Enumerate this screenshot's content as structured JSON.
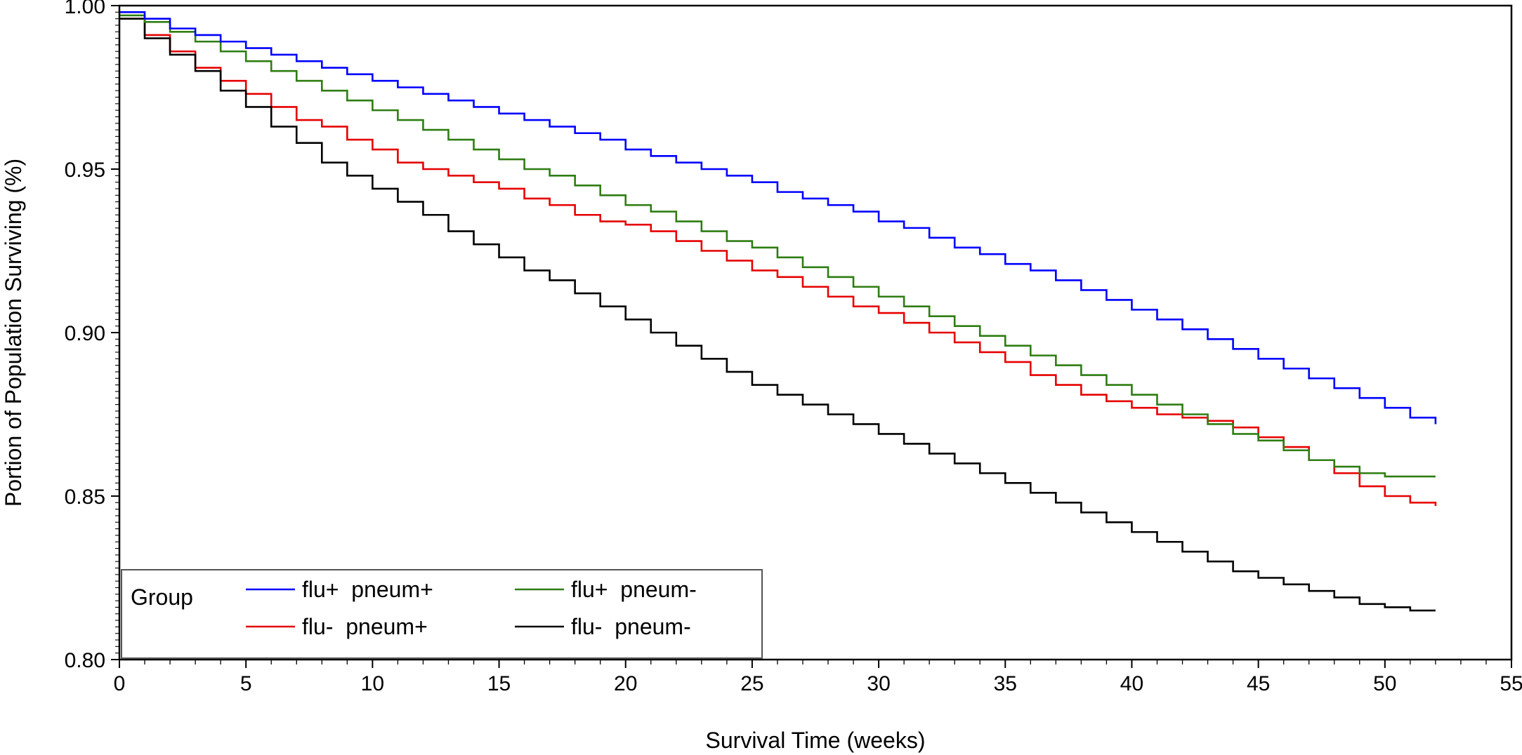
{
  "chart_data": {
    "type": "line",
    "step": true,
    "title": "",
    "xlabel": "Survival Time  (weeks)",
    "ylabel": "Portion of Population Surviving  (%)",
    "xlim": [
      0,
      55
    ],
    "ylim": [
      0.8,
      1.0
    ],
    "x_ticks": [
      "0",
      "5",
      "10",
      "15",
      "20",
      "25",
      "30",
      "35",
      "40",
      "45",
      "50",
      "55"
    ],
    "y_ticks": [
      "0.80",
      "0.85",
      "0.90",
      "0.95",
      "1.00"
    ],
    "x_tick_values": [
      0,
      5,
      10,
      15,
      20,
      25,
      30,
      35,
      40,
      45,
      50,
      55
    ],
    "y_tick_values": [
      0.8,
      0.85,
      0.9,
      0.95,
      1.0
    ],
    "grid": false,
    "legend": {
      "title": "Group",
      "placement": "bottom-left"
    },
    "x": [
      0,
      1,
      2,
      3,
      4,
      5,
      6,
      7,
      8,
      9,
      10,
      11,
      12,
      13,
      14,
      15,
      16,
      17,
      18,
      19,
      20,
      21,
      22,
      23,
      24,
      25,
      26,
      27,
      28,
      29,
      30,
      31,
      32,
      33,
      34,
      35,
      36,
      37,
      38,
      39,
      40,
      41,
      42,
      43,
      44,
      45,
      46,
      47,
      48,
      49,
      50,
      51,
      52
    ],
    "series": [
      {
        "name": "flu+  pneum+",
        "color": "#0000ff",
        "values": [
          0.998,
          0.996,
          0.993,
          0.991,
          0.989,
          0.987,
          0.985,
          0.983,
          0.981,
          0.979,
          0.977,
          0.975,
          0.973,
          0.971,
          0.969,
          0.967,
          0.965,
          0.963,
          0.961,
          0.959,
          0.956,
          0.954,
          0.952,
          0.95,
          0.948,
          0.946,
          0.943,
          0.941,
          0.939,
          0.937,
          0.934,
          0.932,
          0.929,
          0.926,
          0.924,
          0.921,
          0.919,
          0.916,
          0.913,
          0.91,
          0.907,
          0.904,
          0.901,
          0.898,
          0.895,
          0.892,
          0.889,
          0.886,
          0.883,
          0.88,
          0.877,
          0.874,
          0.872
        ]
      },
      {
        "name": "flu+  pneum-",
        "color": "#2e7d12",
        "values": [
          0.997,
          0.995,
          0.992,
          0.989,
          0.986,
          0.983,
          0.98,
          0.977,
          0.974,
          0.971,
          0.968,
          0.965,
          0.962,
          0.959,
          0.956,
          0.953,
          0.95,
          0.948,
          0.945,
          0.942,
          0.939,
          0.937,
          0.934,
          0.931,
          0.928,
          0.926,
          0.923,
          0.92,
          0.917,
          0.914,
          0.911,
          0.908,
          0.905,
          0.902,
          0.899,
          0.896,
          0.893,
          0.89,
          0.887,
          0.884,
          0.881,
          0.878,
          0.875,
          0.872,
          0.869,
          0.867,
          0.864,
          0.861,
          0.859,
          0.857,
          0.856,
          0.856,
          0.856
        ]
      },
      {
        "name": "flu-  pneum+",
        "color": "#e60000",
        "values": [
          0.996,
          0.991,
          0.986,
          0.981,
          0.977,
          0.973,
          0.969,
          0.965,
          0.963,
          0.959,
          0.956,
          0.952,
          0.95,
          0.948,
          0.946,
          0.944,
          0.941,
          0.939,
          0.936,
          0.934,
          0.933,
          0.931,
          0.928,
          0.925,
          0.922,
          0.919,
          0.917,
          0.914,
          0.911,
          0.908,
          0.906,
          0.903,
          0.9,
          0.897,
          0.894,
          0.891,
          0.887,
          0.884,
          0.881,
          0.879,
          0.877,
          0.875,
          0.874,
          0.873,
          0.871,
          0.868,
          0.865,
          0.861,
          0.857,
          0.853,
          0.85,
          0.848,
          0.847
        ]
      },
      {
        "name": "flu-  pneum-",
        "color": "#000000",
        "values": [
          0.996,
          0.99,
          0.985,
          0.98,
          0.974,
          0.969,
          0.963,
          0.958,
          0.952,
          0.948,
          0.944,
          0.94,
          0.936,
          0.931,
          0.927,
          0.923,
          0.919,
          0.916,
          0.912,
          0.908,
          0.904,
          0.9,
          0.896,
          0.892,
          0.888,
          0.884,
          0.881,
          0.878,
          0.875,
          0.872,
          0.869,
          0.866,
          0.863,
          0.86,
          0.857,
          0.854,
          0.851,
          0.848,
          0.845,
          0.842,
          0.839,
          0.836,
          0.833,
          0.83,
          0.827,
          0.825,
          0.823,
          0.821,
          0.819,
          0.817,
          0.816,
          0.815,
          0.815
        ]
      }
    ]
  }
}
